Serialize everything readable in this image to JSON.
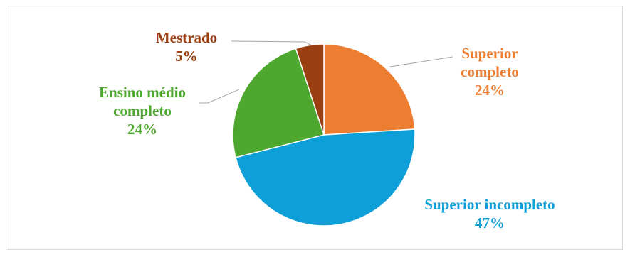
{
  "chart_data": {
    "type": "pie",
    "title": "",
    "slices": [
      {
        "label": "Superior completo",
        "label_lines": [
          "Superior",
          "completo"
        ],
        "value": 24,
        "value_label": "24%",
        "color": "#ED7D31"
      },
      {
        "label": "Superior incompleto",
        "label_lines": [
          "Superior incompleto"
        ],
        "value": 47,
        "value_label": "47%",
        "color": "#0E9FD8"
      },
      {
        "label": "Ensino médio completo",
        "label_lines": [
          "Ensino médio",
          "completo"
        ],
        "value": 24,
        "value_label": "24%",
        "color": "#4EA72E"
      },
      {
        "label": "Mestrado",
        "label_lines": [
          "Mestrado"
        ],
        "value": 5,
        "value_label": "5%",
        "color": "#9A3F12"
      }
    ],
    "start_angle_deg": 0,
    "direction": "clockwise",
    "legend": "none",
    "data_labels": "outside with leader lines"
  }
}
